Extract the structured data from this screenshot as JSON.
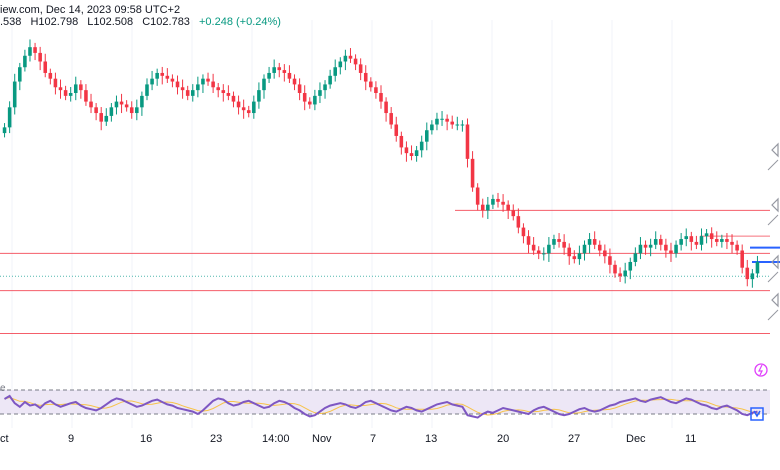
{
  "header": {
    "source_date": "iew.com, Dec 14, 2023 09:58 UTC+2",
    "open": ".538",
    "high": "H102.798",
    "low": "L102.508",
    "close": "C102.783",
    "change": "+0.248 (+0.24%)"
  },
  "rsi": {
    "label": "e"
  },
  "colors": {
    "up": "#089981",
    "down": "#f23645",
    "level_line": "#f23645",
    "rsi_line": "#7e57c2",
    "rsi_signal": "#f7c34a",
    "rsi_band": "#ede7f6",
    "blue_marker": "#2962ff",
    "gray_marker": "#9598a1",
    "flash_icon": "#e040fb"
  },
  "chart_data": {
    "type": "candlestick",
    "title": "",
    "x_ticks": [
      "ct",
      "9",
      "16",
      "23",
      "14:00",
      "Nov",
      "7",
      "13",
      "20",
      "27",
      "Dec",
      "11"
    ],
    "close_series": [
      71,
      78,
      87,
      92,
      96,
      99,
      97,
      94,
      90,
      88,
      85,
      84,
      82,
      83,
      86,
      84,
      80,
      78,
      76,
      73,
      75,
      78,
      80,
      79,
      78,
      76,
      78,
      82,
      86,
      88,
      90,
      89,
      88,
      87,
      85,
      84,
      82,
      84,
      86,
      88,
      87,
      85,
      84,
      83,
      82,
      80,
      78,
      77,
      76,
      80,
      84,
      88,
      90,
      92,
      91,
      90,
      88,
      86,
      83,
      80,
      79,
      82,
      84,
      86,
      89,
      92,
      94,
      96,
      95,
      93,
      90,
      87,
      85,
      83,
      80,
      76,
      72,
      68,
      64,
      62,
      61,
      63,
      66,
      70,
      72,
      74,
      74,
      73,
      72,
      72,
      72,
      60,
      50,
      44,
      42,
      44,
      46,
      45,
      44,
      42,
      40,
      36,
      33,
      30,
      28,
      27,
      27,
      30,
      32,
      31,
      29,
      26,
      25,
      27,
      30,
      32,
      30,
      28,
      26,
      23,
      20,
      19,
      21,
      24,
      27,
      30,
      29,
      30,
      32,
      30,
      28,
      27,
      30,
      32,
      33,
      31,
      30,
      33,
      34,
      32,
      31,
      32,
      31,
      30,
      28,
      22,
      18,
      20,
      24
    ],
    "horizontal_levels": [
      {
        "price": 42,
        "color": "#f23645",
        "style": "solid"
      },
      {
        "price": 27,
        "color": "#f23645",
        "style": "solid"
      },
      {
        "price": 19,
        "color": "#26a69a",
        "style": "dotted"
      },
      {
        "price": 14,
        "color": "#f23645",
        "style": "solid"
      },
      {
        "price": -1,
        "color": "#f23645",
        "style": "solid"
      }
    ],
    "rsi_series": [
      55,
      60,
      48,
      42,
      50,
      44,
      46,
      40,
      48,
      52,
      46,
      42,
      45,
      48,
      50,
      44,
      40,
      38,
      36,
      40,
      46,
      52,
      56,
      54,
      50,
      46,
      42,
      44,
      48,
      52,
      54,
      50,
      46,
      44,
      40,
      38,
      36,
      34,
      30,
      36,
      44,
      52,
      56,
      54,
      48,
      44,
      46,
      50,
      52,
      48,
      44,
      40,
      42,
      48,
      52,
      50,
      46,
      40,
      36,
      30,
      26,
      28,
      34,
      40,
      44,
      46,
      48,
      46,
      42,
      40,
      44,
      50,
      52,
      48,
      44,
      40,
      36,
      34,
      38,
      42,
      40,
      36,
      34,
      38,
      42,
      46,
      48,
      50,
      46,
      44,
      42,
      28,
      26,
      24,
      30,
      34,
      32,
      36,
      40,
      38,
      36,
      34,
      32,
      30,
      36,
      40,
      42,
      38,
      34,
      30,
      28,
      30,
      34,
      38,
      40,
      36,
      34,
      36,
      40,
      44,
      46,
      50,
      52,
      54,
      56,
      52,
      50,
      54,
      56,
      58,
      54,
      50,
      48,
      52,
      56,
      54,
      50,
      46,
      44,
      40,
      38,
      42,
      44,
      40,
      36,
      30,
      28,
      32,
      34
    ],
    "rsi_levels": [
      70,
      30
    ]
  }
}
